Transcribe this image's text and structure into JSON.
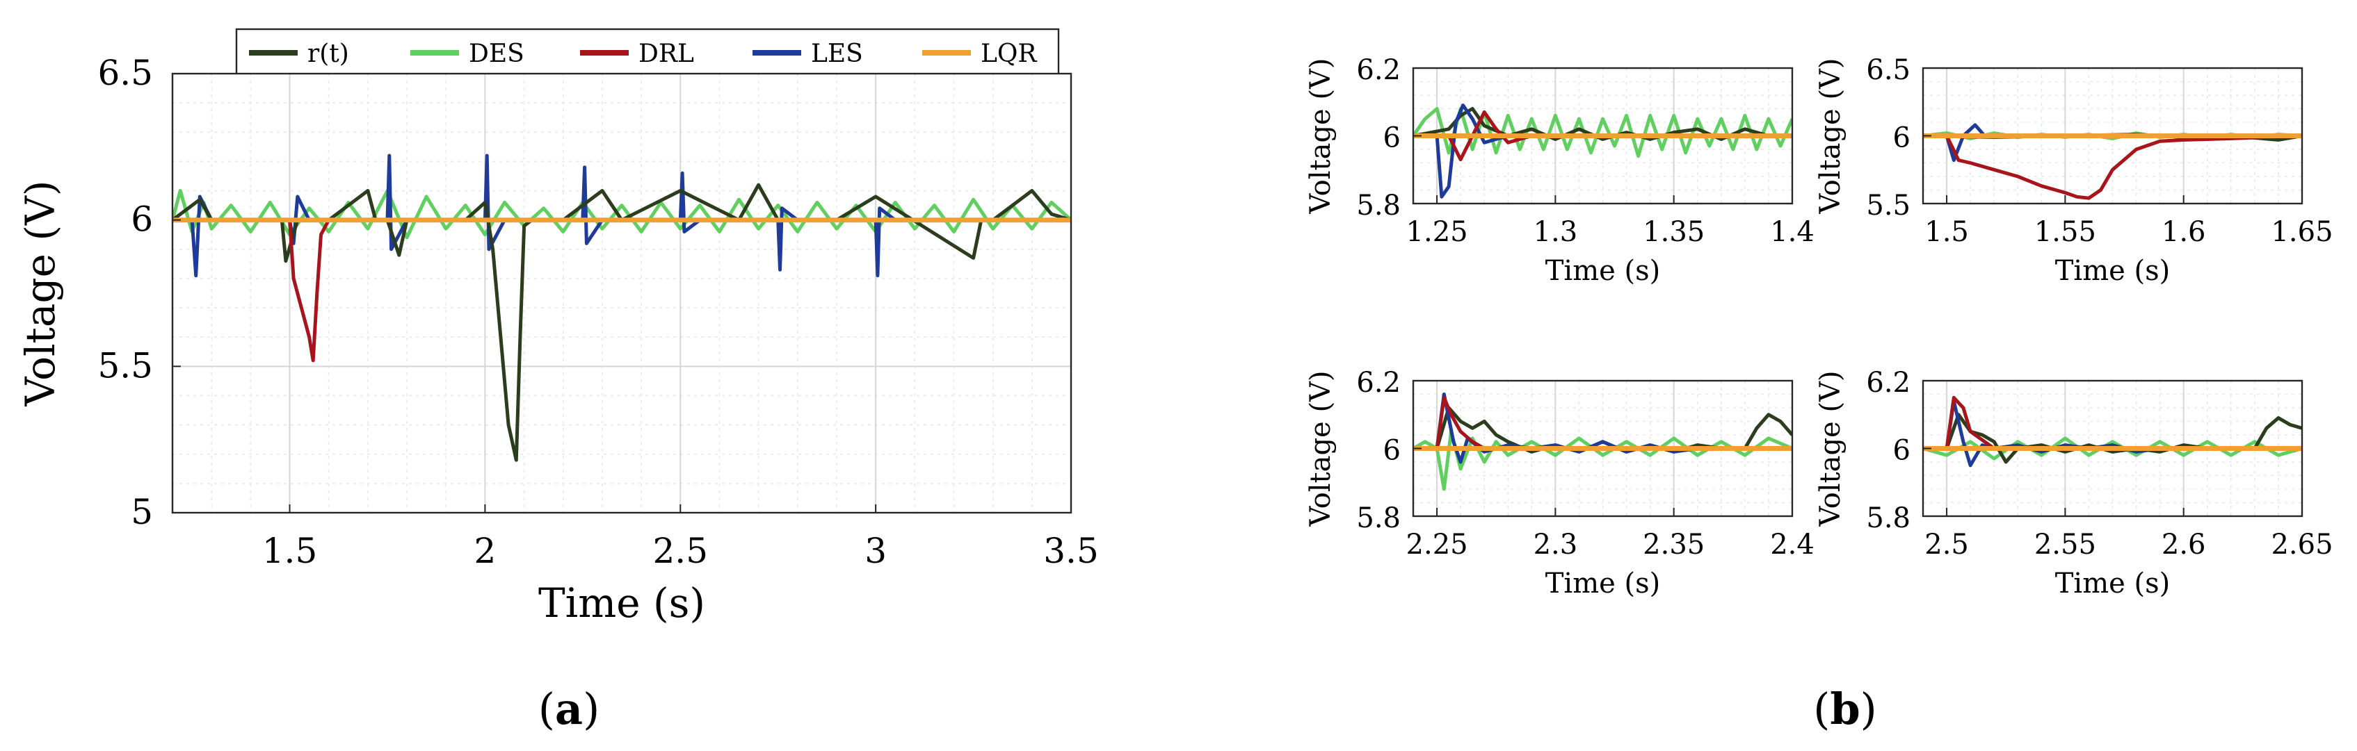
{
  "colors": {
    "r(t)": "#2b3d1c",
    "DES": "#5fcf5f",
    "DRL": "#a8141c",
    "LES": "#1f3b9a",
    "LQR": "#f0a030"
  },
  "legend": [
    "r(t)",
    "DES",
    "DRL",
    "LES",
    "LQR"
  ],
  "panel_labels": {
    "a": "a",
    "b": "b"
  },
  "chart_data": [
    {
      "id": "a",
      "type": "line",
      "xlabel": "Time (s)",
      "ylabel": "Voltage (V)",
      "xlim": [
        1.2,
        3.5
      ],
      "ylim": [
        5.0,
        6.5
      ],
      "xticks": [
        1.5,
        2,
        2.5,
        3,
        3.5
      ],
      "xtick_labels": [
        "1.5",
        "2",
        "2.5",
        "3",
        "3.5"
      ],
      "yticks": [
        5,
        5.5,
        6,
        6.5
      ],
      "ytick_labels": [
        "5",
        "5.5",
        "6",
        "6.5"
      ],
      "grid": true,
      "legend_position": "top",
      "series": [
        {
          "name": "DES",
          "x": [
            1.2,
            1.22,
            1.25,
            1.28,
            1.3,
            1.35,
            1.4,
            1.45,
            1.5,
            1.55,
            1.6,
            1.65,
            1.7,
            1.75,
            1.8,
            1.85,
            1.9,
            1.95,
            2.0,
            2.05,
            2.1,
            2.15,
            2.2,
            2.25,
            2.3,
            2.35,
            2.4,
            2.45,
            2.5,
            2.55,
            2.6,
            2.65,
            2.7,
            2.75,
            2.8,
            2.85,
            2.9,
            2.95,
            3.0,
            3.05,
            3.1,
            3.15,
            3.2,
            3.25,
            3.3,
            3.35,
            3.4,
            3.45,
            3.5
          ],
          "y": [
            6.0,
            6.1,
            5.96,
            6.06,
            5.97,
            6.05,
            5.96,
            6.06,
            5.95,
            6.04,
            5.96,
            6.06,
            5.97,
            6.1,
            5.94,
            6.08,
            5.97,
            6.05,
            5.95,
            6.06,
            5.98,
            6.04,
            5.96,
            6.06,
            5.97,
            6.05,
            5.96,
            6.06,
            5.97,
            6.05,
            5.96,
            6.07,
            5.97,
            6.05,
            5.96,
            6.06,
            5.97,
            6.05,
            5.96,
            6.06,
            5.97,
            6.05,
            5.96,
            6.07,
            5.97,
            6.05,
            5.97,
            6.06,
            6.0
          ]
        },
        {
          "name": "LES",
          "x": [
            1.2,
            1.25,
            1.26,
            1.27,
            1.3,
            1.5,
            1.51,
            1.52,
            1.55,
            1.75,
            1.755,
            1.76,
            1.8,
            2.0,
            2.005,
            2.01,
            2.05,
            2.25,
            2.255,
            2.26,
            2.3,
            2.5,
            2.505,
            2.51,
            2.55,
            2.75,
            2.755,
            2.76,
            2.8,
            3.0,
            3.005,
            3.01,
            3.05,
            3.5
          ],
          "y": [
            6.0,
            6.0,
            5.81,
            6.08,
            6.0,
            6.0,
            5.92,
            6.08,
            6.0,
            6.0,
            6.22,
            5.9,
            6.0,
            6.0,
            6.22,
            5.9,
            6.0,
            6.0,
            6.18,
            5.92,
            6.0,
            6.0,
            6.16,
            5.96,
            6.0,
            6.0,
            5.83,
            6.04,
            6.0,
            6.0,
            5.81,
            6.04,
            6.0,
            6.0
          ]
        },
        {
          "name": "r(t)",
          "x": [
            1.2,
            1.27,
            1.3,
            1.48,
            1.49,
            1.52,
            1.6,
            1.7,
            1.72,
            1.75,
            1.78,
            1.8,
            1.95,
            2.0,
            2.02,
            2.04,
            2.06,
            2.08,
            2.09,
            2.1,
            2.12,
            2.2,
            2.3,
            2.35,
            2.5,
            2.65,
            2.7,
            2.75,
            2.9,
            3.0,
            3.25,
            3.27,
            3.3,
            3.4,
            3.45,
            3.5
          ],
          "y": [
            6.0,
            6.07,
            6.0,
            6.0,
            5.86,
            6.0,
            6.0,
            6.1,
            6.0,
            6.0,
            5.88,
            6.0,
            6.0,
            6.06,
            5.9,
            5.6,
            5.3,
            5.18,
            5.6,
            5.98,
            6.0,
            6.0,
            6.1,
            6.0,
            6.1,
            6.0,
            6.12,
            6.0,
            6.0,
            6.08,
            5.87,
            6.0,
            6.0,
            6.1,
            6.02,
            6.0
          ]
        },
        {
          "name": "DRL",
          "x": [
            1.2,
            1.5,
            1.51,
            1.53,
            1.55,
            1.56,
            1.57,
            1.58,
            1.6,
            1.63,
            1.7,
            3.5
          ],
          "y": [
            6.0,
            6.0,
            5.8,
            5.7,
            5.6,
            5.52,
            5.75,
            5.95,
            6.0,
            6.0,
            6.0,
            6.0
          ]
        },
        {
          "name": "LQR",
          "x": [
            1.2,
            3.5
          ],
          "y": [
            6.0,
            6.0
          ]
        }
      ]
    },
    {
      "id": "b1",
      "type": "line",
      "xlabel": "Time (s)",
      "ylabel": "Voltage (V)",
      "xlim": [
        1.24,
        1.4
      ],
      "ylim": [
        5.8,
        6.2
      ],
      "xticks": [
        1.25,
        1.3,
        1.35,
        1.4
      ],
      "xtick_labels": [
        "1.25",
        "1.3",
        "1.35",
        "1.4"
      ],
      "yticks": [
        5.8,
        6,
        6.2
      ],
      "ytick_labels": [
        "5.8",
        "6",
        "6.2"
      ],
      "grid": true,
      "series": [
        {
          "name": "DES",
          "x": [
            1.24,
            1.245,
            1.25,
            1.255,
            1.26,
            1.265,
            1.27,
            1.275,
            1.28,
            1.285,
            1.29,
            1.295,
            1.3,
            1.305,
            1.31,
            1.315,
            1.32,
            1.325,
            1.33,
            1.335,
            1.34,
            1.345,
            1.35,
            1.355,
            1.36,
            1.365,
            1.37,
            1.375,
            1.38,
            1.385,
            1.39,
            1.395,
            1.4
          ],
          "y": [
            6.0,
            6.05,
            6.08,
            5.95,
            6.08,
            5.96,
            6.07,
            5.95,
            6.06,
            5.96,
            6.05,
            5.96,
            6.06,
            5.96,
            6.05,
            5.95,
            6.05,
            5.97,
            6.06,
            5.94,
            6.06,
            5.96,
            6.06,
            5.95,
            6.05,
            5.97,
            6.05,
            5.96,
            6.06,
            5.96,
            6.05,
            5.97,
            6.05
          ]
        },
        {
          "name": "r(t)",
          "x": [
            1.24,
            1.255,
            1.26,
            1.265,
            1.27,
            1.28,
            1.29,
            1.3,
            1.31,
            1.32,
            1.33,
            1.34,
            1.35,
            1.36,
            1.37,
            1.38,
            1.39,
            1.4
          ],
          "y": [
            6.0,
            6.02,
            6.06,
            6.08,
            6.03,
            6.0,
            6.02,
            5.99,
            6.02,
            5.99,
            6.01,
            5.99,
            6.01,
            6.02,
            5.99,
            6.02,
            6.0,
            6.0
          ]
        },
        {
          "name": "LES",
          "x": [
            1.24,
            1.25,
            1.252,
            1.255,
            1.258,
            1.261,
            1.265,
            1.27,
            1.275,
            1.28,
            1.3,
            1.35,
            1.4
          ],
          "y": [
            6.0,
            6.0,
            5.82,
            5.85,
            6.04,
            6.09,
            6.05,
            5.98,
            5.99,
            6.0,
            6.0,
            6.0,
            6.0
          ]
        },
        {
          "name": "DRL",
          "x": [
            1.24,
            1.255,
            1.26,
            1.265,
            1.27,
            1.275,
            1.28,
            1.29,
            1.3,
            1.32,
            1.4
          ],
          "y": [
            6.0,
            6.0,
            5.93,
            6.0,
            6.07,
            6.02,
            5.98,
            6.0,
            6.0,
            6.0,
            6.0
          ]
        },
        {
          "name": "LQR",
          "x": [
            1.24,
            1.4
          ],
          "y": [
            6.0,
            6.0
          ]
        }
      ]
    },
    {
      "id": "b2",
      "type": "line",
      "xlabel": "Time (s)",
      "ylabel": "Voltage (V)",
      "xlim": [
        1.49,
        1.65
      ],
      "ylim": [
        5.5,
        6.5
      ],
      "xticks": [
        1.5,
        1.55,
        1.6,
        1.65
      ],
      "xtick_labels": [
        "1.5",
        "1.55",
        "1.6",
        "1.65"
      ],
      "yticks": [
        5.5,
        6,
        6.5
      ],
      "ytick_labels": [
        "5.5",
        "6",
        "6.5"
      ],
      "grid": true,
      "series": [
        {
          "name": "DES",
          "x": [
            1.49,
            1.5,
            1.51,
            1.52,
            1.53,
            1.54,
            1.55,
            1.56,
            1.57,
            1.58,
            1.59,
            1.6,
            1.61,
            1.62,
            1.63,
            1.64,
            1.65
          ],
          "y": [
            6.0,
            6.02,
            5.98,
            6.02,
            5.99,
            6.01,
            5.99,
            6.01,
            5.98,
            6.02,
            5.99,
            6.01,
            5.99,
            6.01,
            5.99,
            6.01,
            6.0
          ]
        },
        {
          "name": "r(t)",
          "x": [
            1.49,
            1.52,
            1.55,
            1.58,
            1.6,
            1.62,
            1.64,
            1.65
          ],
          "y": [
            6.0,
            5.99,
            6.0,
            6.01,
            5.99,
            6.0,
            5.97,
            6.0
          ]
        },
        {
          "name": "LES",
          "x": [
            1.49,
            1.5,
            1.503,
            1.507,
            1.512,
            1.516,
            1.52,
            1.65
          ],
          "y": [
            6.0,
            6.0,
            5.82,
            6.0,
            6.08,
            6.0,
            6.0,
            6.0
          ]
        },
        {
          "name": "DRL",
          "x": [
            1.49,
            1.5,
            1.505,
            1.51,
            1.52,
            1.53,
            1.54,
            1.55,
            1.555,
            1.56,
            1.565,
            1.57,
            1.58,
            1.59,
            1.6,
            1.62,
            1.65
          ],
          "y": [
            6.0,
            6.0,
            5.82,
            5.8,
            5.75,
            5.7,
            5.63,
            5.58,
            5.55,
            5.54,
            5.6,
            5.75,
            5.9,
            5.96,
            5.97,
            5.98,
            6.0
          ]
        },
        {
          "name": "LQR",
          "x": [
            1.49,
            1.65
          ],
          "y": [
            6.0,
            6.0
          ]
        }
      ]
    },
    {
      "id": "b3",
      "type": "line",
      "xlabel": "Time (s)",
      "ylabel": "Voltage (V)",
      "xlim": [
        2.24,
        2.4
      ],
      "ylim": [
        5.8,
        6.2
      ],
      "xticks": [
        2.25,
        2.3,
        2.35,
        2.4
      ],
      "xtick_labels": [
        "2.25",
        "2.3",
        "2.35",
        "2.4"
      ],
      "yticks": [
        5.8,
        6,
        6.2
      ],
      "ytick_labels": [
        "5.8",
        "6",
        "6.2"
      ],
      "grid": true,
      "series": [
        {
          "name": "DES",
          "x": [
            2.24,
            2.245,
            2.25,
            2.253,
            2.256,
            2.26,
            2.265,
            2.27,
            2.275,
            2.28,
            2.29,
            2.3,
            2.31,
            2.32,
            2.33,
            2.34,
            2.35,
            2.36,
            2.37,
            2.38,
            2.39,
            2.4
          ],
          "y": [
            6.0,
            6.02,
            6.0,
            5.88,
            6.05,
            5.94,
            6.03,
            5.96,
            6.02,
            5.98,
            6.02,
            5.98,
            6.03,
            5.98,
            6.02,
            5.98,
            6.03,
            5.98,
            6.02,
            5.98,
            6.03,
            6.0
          ]
        },
        {
          "name": "r(t)",
          "x": [
            2.24,
            2.25,
            2.255,
            2.26,
            2.265,
            2.27,
            2.275,
            2.28,
            2.29,
            2.3,
            2.31,
            2.32,
            2.33,
            2.34,
            2.35,
            2.36,
            2.37,
            2.38,
            2.385,
            2.39,
            2.395,
            2.4
          ],
          "y": [
            6.0,
            6.0,
            6.12,
            6.08,
            6.06,
            6.08,
            6.04,
            6.02,
            5.99,
            6.01,
            5.99,
            6.02,
            5.99,
            6.01,
            5.99,
            6.01,
            6.0,
            6.0,
            6.06,
            6.1,
            6.08,
            6.04
          ]
        },
        {
          "name": "LES",
          "x": [
            2.24,
            2.25,
            2.253,
            2.257,
            2.26,
            2.263,
            2.27,
            2.28,
            2.29,
            2.3,
            2.31,
            2.32,
            2.33,
            2.34,
            2.35,
            2.36,
            2.4
          ],
          "y": [
            6.0,
            6.0,
            6.16,
            6.02,
            5.96,
            6.03,
            5.99,
            6.01,
            6.0,
            6.01,
            5.99,
            6.02,
            5.99,
            6.01,
            5.99,
            6.0,
            6.0
          ]
        },
        {
          "name": "DRL",
          "x": [
            2.24,
            2.25,
            2.253,
            2.256,
            2.26,
            2.265,
            2.27,
            2.28,
            2.4
          ],
          "y": [
            6.0,
            6.0,
            6.15,
            6.1,
            6.05,
            6.02,
            6.0,
            6.0,
            6.0
          ]
        },
        {
          "name": "LQR",
          "x": [
            2.24,
            2.4
          ],
          "y": [
            6.0,
            6.0
          ]
        }
      ]
    },
    {
      "id": "b4",
      "type": "line",
      "xlabel": "Time (s)",
      "ylabel": "Voltage (V)",
      "xlim": [
        2.49,
        2.65
      ],
      "ylim": [
        5.8,
        6.2
      ],
      "xticks": [
        2.5,
        2.55,
        2.6,
        2.65
      ],
      "xtick_labels": [
        "2.5",
        "2.55",
        "2.6",
        "2.65"
      ],
      "yticks": [
        5.8,
        6,
        6.2
      ],
      "ytick_labels": [
        "5.8",
        "6",
        "6.2"
      ],
      "grid": true,
      "series": [
        {
          "name": "DES",
          "x": [
            2.49,
            2.5,
            2.51,
            2.52,
            2.53,
            2.54,
            2.55,
            2.56,
            2.57,
            2.58,
            2.59,
            2.6,
            2.61,
            2.62,
            2.63,
            2.64,
            2.65
          ],
          "y": [
            6.0,
            5.98,
            6.02,
            5.97,
            6.02,
            5.98,
            6.03,
            5.98,
            6.02,
            5.98,
            6.02,
            5.98,
            6.02,
            5.98,
            6.02,
            5.98,
            6.0
          ]
        },
        {
          "name": "r(t)",
          "x": [
            2.49,
            2.5,
            2.505,
            2.51,
            2.515,
            2.52,
            2.525,
            2.53,
            2.54,
            2.55,
            2.56,
            2.57,
            2.58,
            2.59,
            2.6,
            2.61,
            2.62,
            2.63,
            2.635,
            2.64,
            2.645,
            2.65
          ],
          "y": [
            6.0,
            6.0,
            6.1,
            6.05,
            6.04,
            6.02,
            5.96,
            6.0,
            6.01,
            5.99,
            6.01,
            5.99,
            6.0,
            5.99,
            6.01,
            6.0,
            6.0,
            6.0,
            6.06,
            6.09,
            6.07,
            6.06
          ]
        },
        {
          "name": "LES",
          "x": [
            2.49,
            2.5,
            2.503,
            2.507,
            2.51,
            2.515,
            2.52,
            2.53,
            2.54,
            2.55,
            2.56,
            2.57,
            2.58,
            2.59,
            2.6,
            2.65
          ],
          "y": [
            6.0,
            6.0,
            6.14,
            6.02,
            5.95,
            6.01,
            6.0,
            6.01,
            5.99,
            6.01,
            6.0,
            6.01,
            5.99,
            6.0,
            6.0,
            6.0
          ]
        },
        {
          "name": "DRL",
          "x": [
            2.49,
            2.5,
            2.503,
            2.507,
            2.51,
            2.52,
            2.53,
            2.65
          ],
          "y": [
            6.0,
            6.0,
            6.15,
            6.12,
            6.05,
            6.0,
            6.0,
            6.0
          ]
        },
        {
          "name": "LQR",
          "x": [
            2.49,
            2.65
          ],
          "y": [
            6.0,
            6.0
          ]
        }
      ]
    }
  ]
}
